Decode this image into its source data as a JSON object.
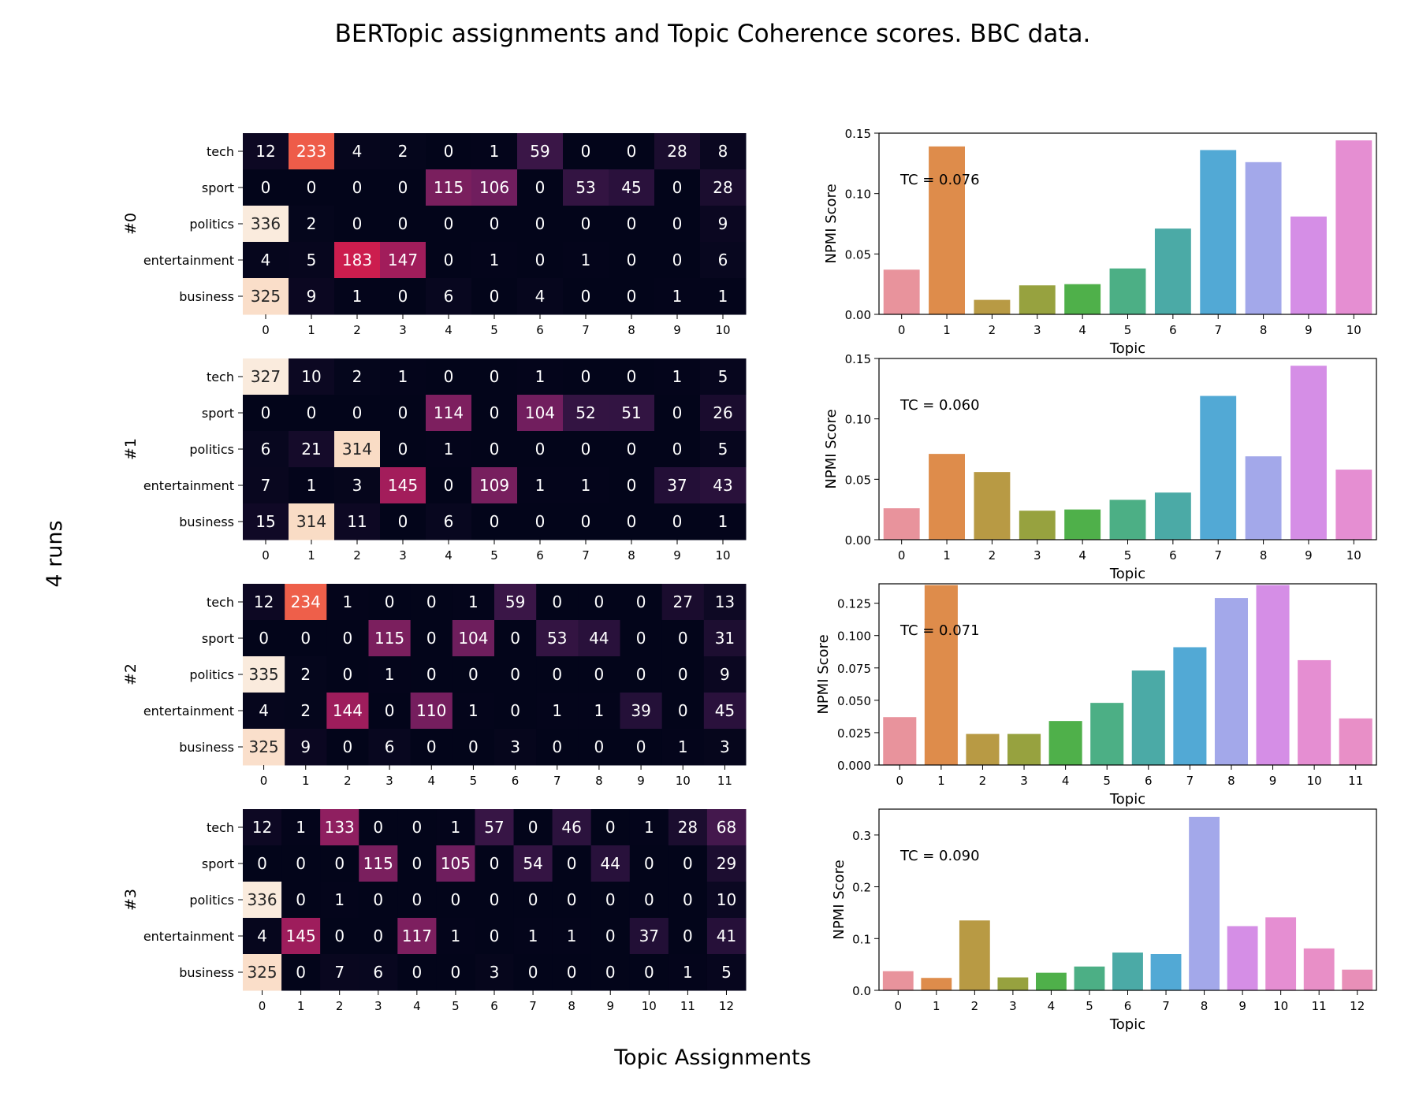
{
  "figure": {
    "title": "BERTopic assignments and Topic Coherence scores. BBC data.",
    "xlabel": "Topic Assignments",
    "ylabel": "4 runs"
  },
  "chart_data": [
    {
      "type": "heatmap",
      "run_label": "#0",
      "rows": [
        "tech",
        "sport",
        "politics",
        "entertainment",
        "business"
      ],
      "columns": [
        "0",
        "1",
        "2",
        "3",
        "4",
        "5",
        "6",
        "7",
        "8",
        "9",
        "10"
      ],
      "values": [
        [
          12,
          233,
          4,
          2,
          0,
          1,
          59,
          0,
          0,
          28,
          8
        ],
        [
          0,
          0,
          0,
          0,
          115,
          106,
          0,
          53,
          45,
          0,
          28
        ],
        [
          336,
          2,
          0,
          0,
          0,
          0,
          0,
          0,
          0,
          0,
          9
        ],
        [
          4,
          5,
          183,
          147,
          0,
          1,
          0,
          1,
          0,
          0,
          6
        ],
        [
          325,
          9,
          1,
          0,
          6,
          0,
          4,
          0,
          0,
          1,
          1
        ]
      ]
    },
    {
      "type": "bar",
      "categories": [
        "0",
        "1",
        "2",
        "3",
        "4",
        "5",
        "6",
        "7",
        "8",
        "9",
        "10"
      ],
      "values": [
        0.037,
        0.139,
        0.012,
        0.024,
        0.025,
        0.038,
        0.071,
        0.136,
        0.126,
        0.081,
        0.144
      ],
      "xlabel": "Topic",
      "ylabel": "NPMI Score",
      "ylim": [
        0,
        0.15
      ],
      "yticks": [
        "0.00",
        "0.05",
        "0.10",
        "0.15"
      ],
      "annotation": "TC = 0.076"
    },
    {
      "type": "heatmap",
      "run_label": "#1",
      "rows": [
        "tech",
        "sport",
        "politics",
        "entertainment",
        "business"
      ],
      "columns": [
        "0",
        "1",
        "2",
        "3",
        "4",
        "5",
        "6",
        "7",
        "8",
        "9",
        "10"
      ],
      "values": [
        [
          327,
          10,
          2,
          1,
          0,
          0,
          1,
          0,
          0,
          1,
          5
        ],
        [
          0,
          0,
          0,
          0,
          114,
          0,
          104,
          52,
          51,
          0,
          26
        ],
        [
          6,
          21,
          314,
          0,
          1,
          0,
          0,
          0,
          0,
          0,
          5
        ],
        [
          7,
          1,
          3,
          145,
          0,
          109,
          1,
          1,
          0,
          37,
          43
        ],
        [
          15,
          314,
          11,
          0,
          6,
          0,
          0,
          0,
          0,
          0,
          1
        ]
      ]
    },
    {
      "type": "bar",
      "categories": [
        "0",
        "1",
        "2",
        "3",
        "4",
        "5",
        "6",
        "7",
        "8",
        "9",
        "10"
      ],
      "values": [
        0.026,
        0.071,
        0.056,
        0.024,
        0.025,
        0.033,
        0.039,
        0.119,
        0.069,
        0.144,
        0.058
      ],
      "xlabel": "Topic",
      "ylabel": "NPMI Score",
      "ylim": [
        0,
        0.15
      ],
      "yticks": [
        "0.00",
        "0.05",
        "0.10",
        "0.15"
      ],
      "annotation": "TC = 0.060"
    },
    {
      "type": "heatmap",
      "run_label": "#2",
      "rows": [
        "tech",
        "sport",
        "politics",
        "entertainment",
        "business"
      ],
      "columns": [
        "0",
        "1",
        "2",
        "3",
        "4",
        "5",
        "6",
        "7",
        "8",
        "9",
        "10",
        "11"
      ],
      "values": [
        [
          12,
          234,
          1,
          0,
          0,
          1,
          59,
          0,
          0,
          0,
          27,
          13
        ],
        [
          0,
          0,
          0,
          115,
          0,
          104,
          0,
          53,
          44,
          0,
          0,
          31
        ],
        [
          335,
          2,
          0,
          1,
          0,
          0,
          0,
          0,
          0,
          0,
          0,
          9
        ],
        [
          4,
          2,
          144,
          0,
          110,
          1,
          0,
          1,
          1,
          39,
          0,
          45
        ],
        [
          325,
          9,
          0,
          6,
          0,
          0,
          3,
          0,
          0,
          0,
          1,
          3
        ]
      ]
    },
    {
      "type": "bar",
      "categories": [
        "0",
        "1",
        "2",
        "3",
        "4",
        "5",
        "6",
        "7",
        "8",
        "9",
        "10",
        "11"
      ],
      "values": [
        0.037,
        0.139,
        0.024,
        0.024,
        0.034,
        0.048,
        0.073,
        0.091,
        0.129,
        0.139,
        0.081,
        0.036
      ],
      "xlabel": "Topic",
      "ylabel": "NPMI Score",
      "ylim": [
        0,
        0.14
      ],
      "yticks": [
        "0.000",
        "0.025",
        "0.050",
        "0.075",
        "0.100",
        "0.125"
      ],
      "annotation": "TC = 0.071"
    },
    {
      "type": "heatmap",
      "run_label": "#3",
      "rows": [
        "tech",
        "sport",
        "politics",
        "entertainment",
        "business"
      ],
      "columns": [
        "0",
        "1",
        "2",
        "3",
        "4",
        "5",
        "6",
        "7",
        "8",
        "9",
        "10",
        "11",
        "12"
      ],
      "values": [
        [
          12,
          1,
          133,
          0,
          0,
          1,
          57,
          0,
          46,
          0,
          1,
          28,
          68
        ],
        [
          0,
          0,
          0,
          115,
          0,
          105,
          0,
          54,
          0,
          44,
          0,
          0,
          29
        ],
        [
          336,
          0,
          1,
          0,
          0,
          0,
          0,
          0,
          0,
          0,
          0,
          0,
          10
        ],
        [
          4,
          145,
          0,
          0,
          117,
          1,
          0,
          1,
          1,
          0,
          37,
          0,
          41
        ],
        [
          325,
          0,
          7,
          6,
          0,
          0,
          3,
          0,
          0,
          0,
          0,
          1,
          5
        ]
      ]
    },
    {
      "type": "bar",
      "categories": [
        "0",
        "1",
        "2",
        "3",
        "4",
        "5",
        "6",
        "7",
        "8",
        "9",
        "10",
        "11",
        "12"
      ],
      "values": [
        0.037,
        0.024,
        0.135,
        0.025,
        0.034,
        0.046,
        0.073,
        0.07,
        0.335,
        0.124,
        0.141,
        0.081,
        0.04
      ],
      "xlabel": "Topic",
      "ylabel": "NPMI Score",
      "ylim": [
        0,
        0.35
      ],
      "yticks": [
        "0.0",
        "0.1",
        "0.2",
        "0.3"
      ],
      "annotation": "TC = 0.090"
    }
  ]
}
